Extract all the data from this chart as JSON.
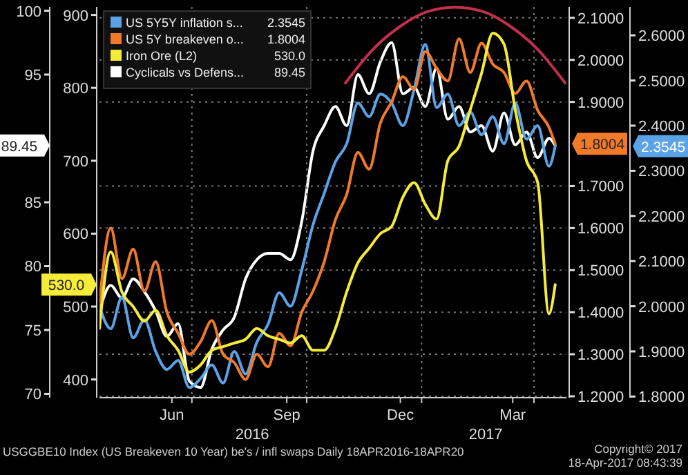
{
  "chart_data": [
    {
      "type": "line",
      "x": [
        "2016-04-18",
        "2016-04-27",
        "2016-05-06",
        "2016-05-15",
        "2016-05-24",
        "2016-06-02",
        "2016-06-11",
        "2016-06-20",
        "2016-06-29",
        "2016-07-08",
        "2016-07-17",
        "2016-07-26",
        "2016-08-04",
        "2016-08-13",
        "2016-08-22",
        "2016-08-31",
        "2016-09-09",
        "2016-09-18",
        "2016-09-27",
        "2016-10-06",
        "2016-10-15",
        "2016-10-24",
        "2016-11-02",
        "2016-11-11",
        "2016-11-20",
        "2016-11-29",
        "2016-12-08",
        "2016-12-17",
        "2016-12-26",
        "2017-01-04",
        "2017-01-13",
        "2017-01-22",
        "2017-01-31",
        "2017-02-09",
        "2017-02-18",
        "2017-02-27",
        "2017-03-08",
        "2017-03-17",
        "2017-03-26",
        "2017-04-04",
        "2017-04-13",
        "2017-04-18"
      ],
      "series": [
        {
          "name": "US 5Y5Y inflation s...",
          "color": "#5ba3e6",
          "axis": "y3",
          "values": [
            2.0,
            1.95,
            2.02,
            1.93,
            1.97,
            1.9,
            1.86,
            1.88,
            1.82,
            1.84,
            1.87,
            1.83,
            1.9,
            1.85,
            1.92,
            1.96,
            2.03,
            2.0,
            2.08,
            2.18,
            2.25,
            2.32,
            2.36,
            2.45,
            2.42,
            2.47,
            2.45,
            2.4,
            2.48,
            2.58,
            2.44,
            2.47,
            2.4,
            2.43,
            2.38,
            2.42,
            2.36,
            2.45,
            2.37,
            2.4,
            2.31,
            2.3545
          ]
        },
        {
          "name": "US 5Y breakeven o...",
          "color": "#f07a2a",
          "axis": "y2",
          "values": [
            1.42,
            1.6,
            1.48,
            1.55,
            1.45,
            1.52,
            1.4,
            1.35,
            1.3,
            1.33,
            1.38,
            1.3,
            1.28,
            1.24,
            1.3,
            1.27,
            1.35,
            1.32,
            1.4,
            1.45,
            1.52,
            1.62,
            1.68,
            1.78,
            1.74,
            1.85,
            1.9,
            1.96,
            1.93,
            2.02,
            1.98,
            1.95,
            2.05,
            1.97,
            2.04,
            1.99,
            1.97,
            1.92,
            1.95,
            1.88,
            1.84,
            1.8004
          ]
        },
        {
          "name": "Iron Ore (L2)",
          "color": "#f5ec3a",
          "values": [
            470,
            575,
            520,
            500,
            480,
            495,
            460,
            440,
            410,
            420,
            440,
            445,
            450,
            455,
            470,
            460,
            455,
            450,
            460,
            440,
            440,
            470,
            520,
            560,
            580,
            600,
            610,
            650,
            670,
            640,
            620,
            700,
            720,
            770,
            820,
            875,
            860,
            770,
            700,
            670,
            490,
            530
          ]
        },
        {
          "type": "line",
          "color": "#c0304a",
          "axis": "y2",
          "x": [
            "2016-11-01",
            "2016-11-23",
            "2016-12-15",
            "2017-01-06",
            "2017-01-28",
            "2017-02-19",
            "2017-03-13",
            "2017-04-04",
            "2017-04-26"
          ],
          "values": [
            1.945,
            2.025,
            2.08,
            2.115,
            2.125,
            2.115,
            2.08,
            2.025,
            1.945
          ]
        }
      ],
      "xlim": [
        "2016-04-18",
        "2017-04-27"
      ],
      "xticks": [
        {
          "value": "2016-06-15",
          "label": "Jun"
        },
        {
          "value": "2016-07-01",
          "label": null
        },
        {
          "value": "2016-09-15",
          "label": "Sep"
        },
        {
          "value": "2016-10-01",
          "label": null
        },
        {
          "value": "2016-12-15",
          "label": "Dec"
        },
        {
          "value": "2017-01-01",
          "label": null
        },
        {
          "value": "2017-03-15",
          "label": "Mar"
        },
        {
          "value": "2017-04-01",
          "label": null
        }
      ],
      "ylim": [
        375,
        911
      ],
      "yticks": [
        400,
        500,
        {
          "value": 530,
          "label": "530.0"
        },
        600,
        700,
        800,
        900
      ],
      "y2lim": [
        1.1967,
        2.126
      ],
      "y2ticks": [
        {
          "value": 1.2,
          "label": "1.2000"
        },
        {
          "value": 1.3,
          "label": "1.3000"
        },
        {
          "value": 1.4,
          "label": "1.4000"
        },
        {
          "value": 1.5,
          "label": "1.5000"
        },
        {
          "value": 1.6,
          "label": "1.6000"
        },
        {
          "value": 1.7,
          "label": "1.7000"
        },
        {
          "value": 1.8004,
          "label": "1.8004"
        },
        {
          "value": 1.9,
          "label": "1.9000"
        },
        {
          "value": 2.0,
          "label": "2.0000"
        },
        {
          "value": 2.1,
          "label": "2.1000"
        }
      ],
      "y3lim": [
        1.7975,
        2.663
      ],
      "y3ticks": [
        {
          "value": 1.8,
          "label": "1.8000"
        },
        {
          "value": 1.9,
          "label": "1.9000"
        },
        {
          "value": 2.0,
          "label": "2.0000"
        },
        {
          "value": 2.1,
          "label": "2.1000"
        },
        {
          "value": 2.2,
          "label": "2.2000"
        },
        {
          "value": 2.3,
          "label": "2.3000"
        },
        {
          "value": 2.3545,
          "label": "2.3545"
        },
        {
          "value": 2.4,
          "label": "2.4000"
        },
        {
          "value": 2.5,
          "label": "2.5000"
        },
        {
          "value": 2.6,
          "label": "2.6000"
        }
      ],
      "grid": true,
      "legend": "top left",
      "marker": "none",
      "line_style": "solid",
      "annotations": [
        "USGGBE10 Index (US Breakeven 10 Year) be's / infl swaps  Daily 18APR2016-18APR20",
        "Copyright© 2017",
        "18-Apr-2017 08:43:39",
        "2016",
        "2017"
      ]
    },
    {
      "type": "line",
      "x": [
        "2016-04-18",
        "2016-04-27",
        "2016-05-06",
        "2016-05-15",
        "2016-05-24",
        "2016-06-02",
        "2016-06-11",
        "2016-06-20",
        "2016-06-29",
        "2016-07-08",
        "2016-07-17",
        "2016-07-26",
        "2016-08-04",
        "2016-08-13",
        "2016-08-22",
        "2016-08-31",
        "2016-09-09",
        "2016-09-18",
        "2016-09-27",
        "2016-10-06",
        "2016-10-15",
        "2016-10-24",
        "2016-11-02",
        "2016-11-11",
        "2016-11-20",
        "2016-11-29",
        "2016-12-08",
        "2016-12-17",
        "2016-12-26",
        "2017-01-04",
        "2017-01-13",
        "2017-01-22",
        "2017-01-31",
        "2017-02-09",
        "2017-02-18",
        "2017-02-27",
        "2017-03-08",
        "2017-03-17",
        "2017-03-26",
        "2017-04-04",
        "2017-04-13",
        "2017-04-18"
      ],
      "series": [
        {
          "name": "Cyclicals vs Defens...",
          "color": "#ffffff",
          "values": [
            76.5,
            78.5,
            77.5,
            79.0,
            78.0,
            76.5,
            74.5,
            75.5,
            71.0,
            70.5,
            73.5,
            75.0,
            76.0,
            79.0,
            80.5,
            81.0,
            81.0,
            80.5,
            83.5,
            89.0,
            91.0,
            92.5,
            91.0,
            95.0,
            93.5,
            96.0,
            97.5,
            93.5,
            94.0,
            92.5,
            95.5,
            91.5,
            92.5,
            90.5,
            91.0,
            89.0,
            92.0,
            89.5,
            90.5,
            88.5,
            90.0,
            89.45
          ]
        }
      ],
      "xlim": [
        "2016-04-18",
        "2017-04-27"
      ],
      "ylim": [
        69.7,
        100.3
      ],
      "yticks": [
        70,
        75,
        80,
        85,
        {
          "value": 89.45,
          "label": "89.45"
        },
        95,
        100
      ],
      "tick_labels": "y",
      "legend": "top left"
    }
  ]
}
